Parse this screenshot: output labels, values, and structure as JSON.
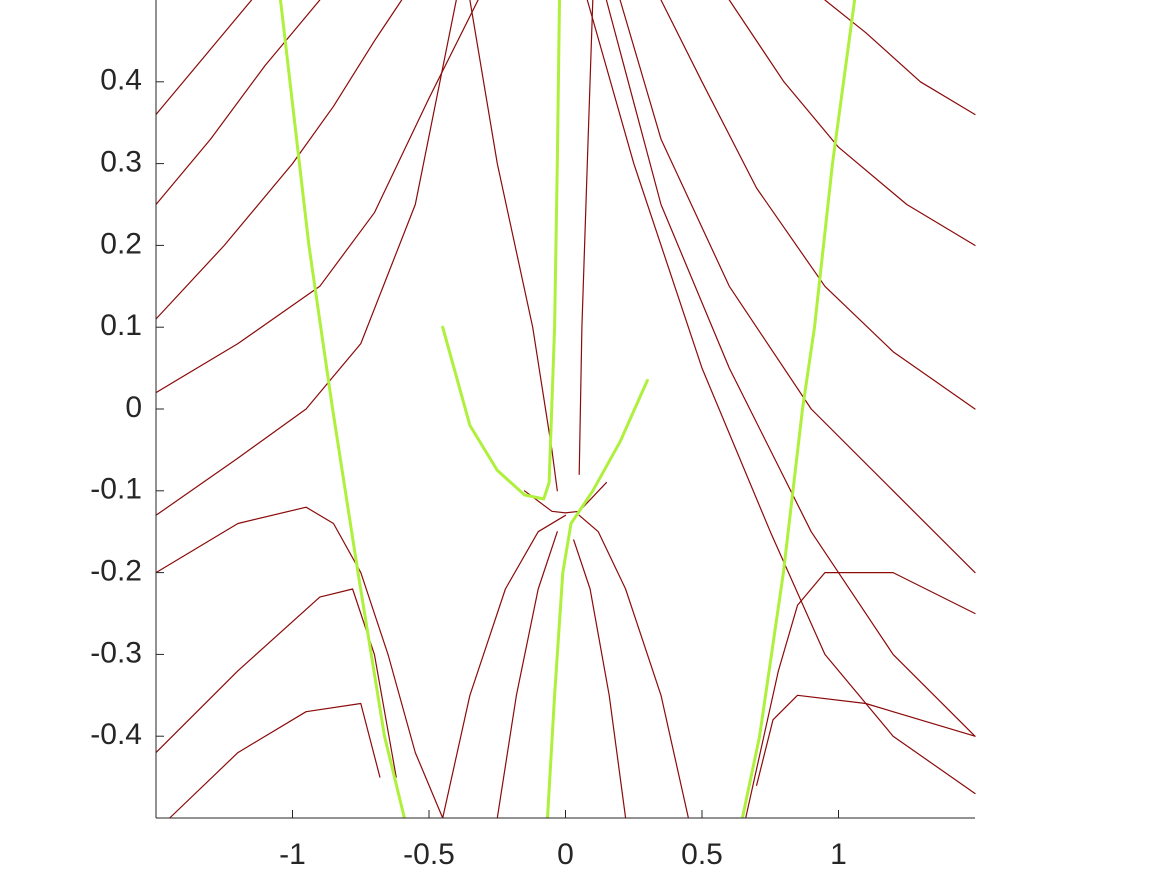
{
  "chart_data": {
    "type": "line",
    "xlim": [
      -1.5,
      1.5
    ],
    "ylim": [
      -0.5,
      0.5
    ],
    "xticks": [
      -1,
      -0.5,
      0,
      0.5,
      1
    ],
    "yticks": [
      -0.4,
      -0.3,
      -0.2,
      -0.1,
      0,
      0.1,
      0.2,
      0.3,
      0.4
    ],
    "series": [
      {
        "color": "#8b0a0a",
        "x": [
          -1.5,
          -1.2,
          -0.95,
          -0.75,
          -0.55,
          -0.4
        ],
        "values": [
          -0.13,
          -0.06,
          0.0,
          0.08,
          0.25,
          0.5
        ]
      },
      {
        "color": "#8b0a0a",
        "x": [
          -1.5,
          -1.2,
          -0.9,
          -0.7,
          -0.5,
          -0.32
        ],
        "values": [
          0.02,
          0.08,
          0.15,
          0.24,
          0.38,
          0.5
        ]
      },
      {
        "color": "#8b0a0a",
        "x": [
          -1.5,
          -1.25,
          -1.0,
          -0.85,
          -0.7,
          -0.6
        ],
        "values": [
          0.11,
          0.2,
          0.3,
          0.37,
          0.45,
          0.5
        ]
      },
      {
        "color": "#8b0a0a",
        "x": [
          -1.5,
          -1.3,
          -1.1,
          -1.0,
          -0.9
        ],
        "values": [
          0.25,
          0.33,
          0.42,
          0.46,
          0.5
        ]
      },
      {
        "color": "#8b0a0a",
        "x": [
          -1.5,
          -1.3,
          -1.15
        ],
        "values": [
          0.36,
          0.44,
          0.5
        ]
      },
      {
        "color": "#8b0a0a",
        "x": [
          -1.5,
          -1.2,
          -0.95,
          -0.85,
          -0.75,
          -0.65,
          -0.55,
          -0.45
        ],
        "values": [
          -0.2,
          -0.14,
          -0.12,
          -0.14,
          -0.2,
          -0.3,
          -0.42,
          -0.5
        ]
      },
      {
        "color": "#8b0a0a",
        "x": [
          -1.5,
          -1.2,
          -0.9,
          -0.78,
          -0.7,
          -0.62
        ],
        "values": [
          -0.42,
          -0.32,
          -0.23,
          -0.22,
          -0.3,
          -0.45
        ]
      },
      {
        "color": "#8b0a0a",
        "x": [
          -1.45,
          -1.2,
          -0.95,
          -0.75,
          -0.68
        ],
        "values": [
          -0.5,
          -0.42,
          -0.37,
          -0.36,
          -0.45
        ]
      },
      {
        "color": "#8b0a0a",
        "x": [
          1.5,
          1.2,
          0.9,
          0.6,
          0.35,
          0.15
        ],
        "values": [
          -0.4,
          -0.3,
          -0.15,
          0.05,
          0.25,
          0.5
        ]
      },
      {
        "color": "#8b0a0a",
        "x": [
          1.5,
          1.2,
          0.9,
          0.6,
          0.35,
          0.2
        ],
        "values": [
          -0.2,
          -0.1,
          0.0,
          0.15,
          0.33,
          0.5
        ]
      },
      {
        "color": "#8b0a0a",
        "x": [
          1.5,
          1.2,
          0.95,
          0.7,
          0.5,
          0.35
        ],
        "values": [
          0.0,
          0.07,
          0.15,
          0.27,
          0.4,
          0.5
        ]
      },
      {
        "color": "#8b0a0a",
        "x": [
          1.5,
          1.25,
          1.0,
          0.8,
          0.6
        ],
        "values": [
          0.2,
          0.25,
          0.32,
          0.4,
          0.5
        ]
      },
      {
        "color": "#8b0a0a",
        "x": [
          1.5,
          1.3,
          1.1,
          0.95
        ],
        "values": [
          0.36,
          0.4,
          0.46,
          0.5
        ]
      },
      {
        "color": "#8b0a0a",
        "x": [
          1.5,
          1.2,
          0.95,
          0.75,
          0.5,
          0.25,
          0.08
        ],
        "values": [
          -0.47,
          -0.4,
          -0.3,
          -0.15,
          0.05,
          0.3,
          0.5
        ]
      },
      {
        "color": "#8b0a0a",
        "x": [
          1.5,
          1.2,
          0.95,
          0.85,
          0.78,
          0.7,
          0.66
        ],
        "values": [
          -0.25,
          -0.2,
          -0.2,
          -0.24,
          -0.32,
          -0.44,
          -0.5
        ]
      },
      {
        "color": "#8b0a0a",
        "x": [
          1.5,
          1.1,
          0.85,
          0.76,
          0.7
        ],
        "values": [
          -0.4,
          -0.36,
          -0.35,
          -0.38,
          -0.46
        ]
      },
      {
        "color": "#8b0a0a",
        "x": [
          -0.45,
          -0.35,
          -0.22,
          -0.1,
          0.0
        ],
        "values": [
          -0.5,
          -0.35,
          -0.22,
          -0.15,
          -0.13
        ]
      },
      {
        "color": "#8b0a0a",
        "x": [
          -0.25,
          -0.18,
          -0.1,
          -0.03
        ],
        "values": [
          -0.5,
          -0.35,
          -0.22,
          -0.15
        ]
      },
      {
        "color": "#8b0a0a",
        "x": [
          0.45,
          0.35,
          0.22,
          0.12,
          0.05
        ],
        "values": [
          -0.5,
          -0.35,
          -0.22,
          -0.15,
          -0.13
        ]
      },
      {
        "color": "#8b0a0a",
        "x": [
          0.22,
          0.16,
          0.09,
          0.03
        ],
        "values": [
          -0.5,
          -0.35,
          -0.22,
          -0.16
        ]
      },
      {
        "color": "#8b0a0a",
        "x": [
          -0.15,
          -0.05,
          0.0,
          0.05,
          0.15
        ],
        "values": [
          -0.1,
          -0.125,
          -0.127,
          -0.125,
          -0.09
        ]
      },
      {
        "color": "#8b0a0a",
        "x": [
          -0.35,
          -0.25,
          -0.12,
          -0.05,
          -0.03
        ],
        "values": [
          0.5,
          0.3,
          0.1,
          -0.05,
          -0.1
        ]
      },
      {
        "color": "#8b0a0a",
        "x": [
          0.1,
          0.08,
          0.06,
          0.05
        ],
        "values": [
          0.5,
          0.3,
          0.1,
          -0.08
        ]
      },
      {
        "color": "#aef03c",
        "x": [
          -1.044,
          -0.94,
          -0.853,
          -0.76,
          -0.663,
          -0.59
        ],
        "values": [
          0.5,
          0.2,
          0.0,
          -0.2,
          -0.4,
          -0.5
        ]
      },
      {
        "color": "#aef03c",
        "x": [
          1.059,
          0.978,
          0.912,
          0.868,
          0.798,
          0.711,
          0.648
        ],
        "values": [
          0.5,
          0.3,
          0.1,
          0.0,
          -0.2,
          -0.4,
          -0.5
        ]
      },
      {
        "color": "#aef03c",
        "x": [
          -0.45,
          -0.35,
          -0.25,
          -0.15,
          -0.08,
          -0.06,
          -0.04,
          -0.03,
          -0.022
        ],
        "values": [
          0.1,
          -0.02,
          -0.075,
          -0.105,
          -0.11,
          -0.09,
          0.1,
          0.3,
          0.5
        ]
      },
      {
        "color": "#aef03c",
        "x": [
          0.3,
          0.2,
          0.1,
          0.02,
          -0.01,
          -0.04,
          -0.066
        ],
        "values": [
          0.035,
          -0.04,
          -0.1,
          -0.14,
          -0.2,
          -0.35,
          -0.5
        ]
      }
    ]
  }
}
